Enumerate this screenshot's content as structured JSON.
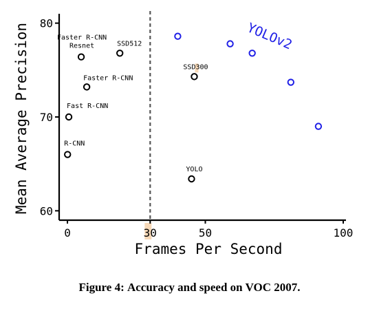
{
  "chart_data": {
    "type": "scatter",
    "xlabel": "Frames Per Second",
    "ylabel": "Mean Average Precision",
    "xlim": [
      -3,
      101
    ],
    "ylim": [
      59,
      81
    ],
    "xticks": [
      0,
      30,
      50,
      100
    ],
    "yticks": [
      60,
      70,
      80
    ],
    "realtime_threshold_fps": 30,
    "colors": {
      "other": "#000000",
      "yolov2": "#1f1fe6",
      "highlight": "#f7d9b8"
    },
    "series": [
      {
        "name": "",
        "color": "#000000",
        "points": [
          {
            "label": "R-CNN",
            "x": 0.05,
            "y": 66.0
          },
          {
            "label": "Fast R-CNN",
            "x": 0.5,
            "y": 70.0
          },
          {
            "label": "Faster R-CNN",
            "x": 7,
            "y": 73.2
          },
          {
            "label": "Faster R-CNN Resnet",
            "x": 5,
            "y": 76.4
          },
          {
            "label": "SSD512",
            "x": 19,
            "y": 76.8
          },
          {
            "label": "SSD300",
            "x": 46,
            "y": 74.3
          },
          {
            "label": "YOLO",
            "x": 45,
            "y": 63.4
          }
        ]
      },
      {
        "name": "YOLOv2",
        "color": "#1f1fe6",
        "points": [
          {
            "x": 40,
            "y": 78.6
          },
          {
            "x": 59,
            "y": 77.8
          },
          {
            "x": 67,
            "y": 76.8
          },
          {
            "x": 81,
            "y": 73.7
          },
          {
            "x": 91,
            "y": 69.0
          }
        ]
      }
    ]
  },
  "caption": {
    "label": "Figure 4:",
    "text": "Accuracy and speed on VOC 2007."
  }
}
